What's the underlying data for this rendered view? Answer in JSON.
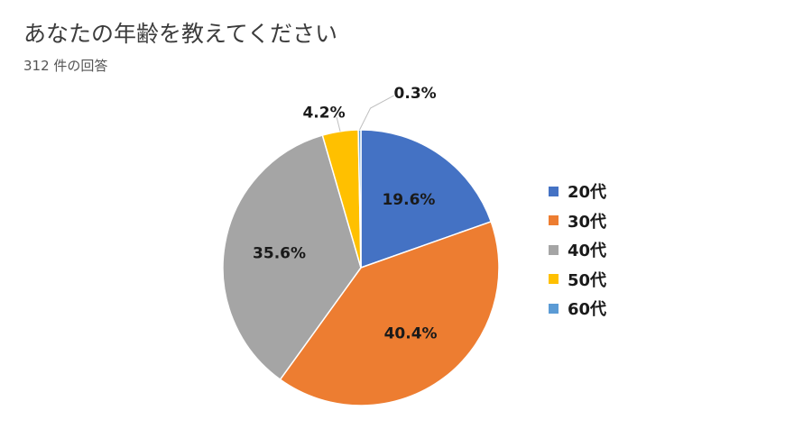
{
  "header": {
    "title": "あなたの年齢を教えてください",
    "subtitle": "312 件の回答"
  },
  "chart_data": {
    "type": "pie",
    "title": "",
    "categories": [
      "20代",
      "30代",
      "40代",
      "50代",
      "60代"
    ],
    "values": [
      19.6,
      40.4,
      35.6,
      4.2,
      0.3
    ],
    "labels": [
      "19.6%",
      "40.4%",
      "35.6%",
      "4.2%",
      "0.3%"
    ],
    "colors": [
      "#4472c4",
      "#ed7d31",
      "#a5a5a5",
      "#ffc000",
      "#5b9bd5"
    ],
    "legend_position": "right",
    "start_angle": "12 o'clock",
    "direction": "clockwise"
  }
}
